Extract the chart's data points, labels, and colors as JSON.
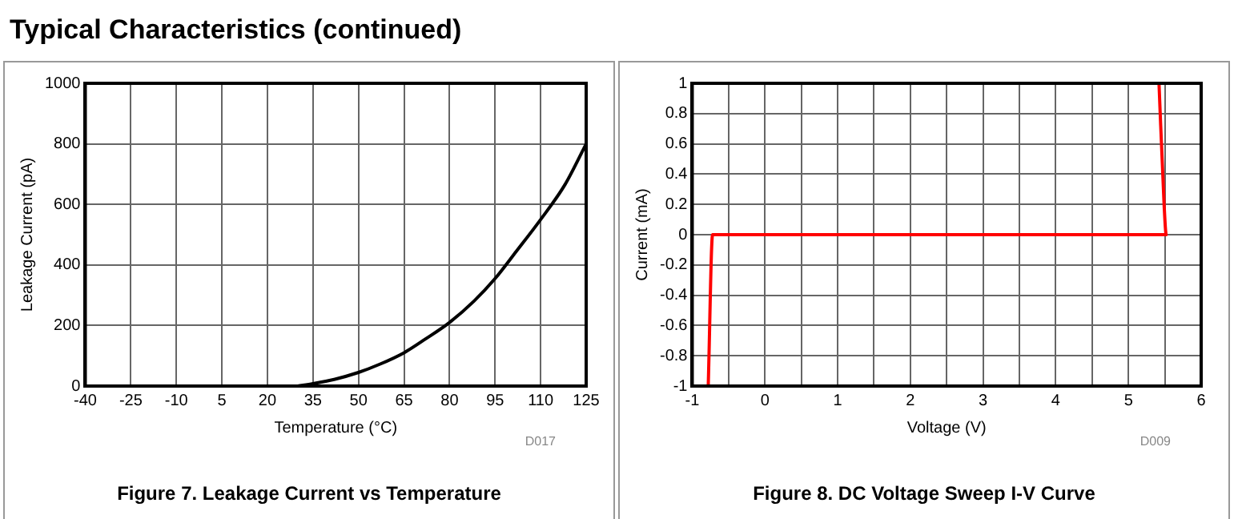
{
  "chart_data": [
    {
      "type": "line",
      "title": "Figure 7. Leakage Current vs Temperature",
      "xlabel": "Temperature (°C)",
      "ylabel": "Leakage Current (pA)",
      "annotations": [
        "Typical Characteristics (continued)",
        "D017"
      ],
      "series": [
        {
          "color": "#000000",
          "x": [
            30,
            35,
            42,
            50,
            57,
            65,
            72,
            80,
            88,
            95,
            102,
            110,
            118,
            125
          ],
          "values": [
            0,
            8,
            22,
            45,
            72,
            110,
            155,
            210,
            280,
            355,
            445,
            550,
            665,
            800
          ]
        }
      ],
      "xlim": [
        -40,
        125
      ],
      "xticks": [
        -40,
        -25,
        -10,
        5,
        20,
        35,
        50,
        65,
        80,
        95,
        110,
        125
      ],
      "ylim": [
        0,
        1000
      ],
      "yticks": [
        0,
        200,
        400,
        600,
        800,
        1000
      ],
      "grid": true,
      "legend": false,
      "marker": "none",
      "line_style": "solid"
    },
    {
      "type": "line",
      "title": "Figure 8. DC Voltage Sweep I-V Curve",
      "xlabel": "Voltage (V)",
      "ylabel": "Current (mA)",
      "annotations": [
        "D009"
      ],
      "series": [
        {
          "color": "#ff0000",
          "x": [
            -0.78,
            -0.72,
            5.52,
            5.49,
            5.42
          ],
          "values": [
            -1,
            0,
            0,
            0.2,
            1
          ]
        }
      ],
      "xlim": [
        -1,
        6
      ],
      "xticks": [
        -1,
        {
          "value": -0.5,
          "label": null
        },
        0,
        {
          "value": 0.5,
          "label": null
        },
        1,
        {
          "value": 1.5,
          "label": null
        },
        2,
        {
          "value": 2.5,
          "label": null
        },
        3,
        {
          "value": 3.5,
          "label": null
        },
        4,
        {
          "value": 4.5,
          "label": null
        },
        5,
        {
          "value": 5.5,
          "label": null
        },
        6
      ],
      "ylim": [
        -1,
        1
      ],
      "yticks": [
        -1,
        -0.8,
        -0.6,
        -0.4,
        -0.2,
        0,
        0.2,
        0.4,
        0.6,
        0.8,
        1
      ],
      "grid": true,
      "legend": false,
      "marker": "none",
      "line_style": "solid"
    }
  ]
}
